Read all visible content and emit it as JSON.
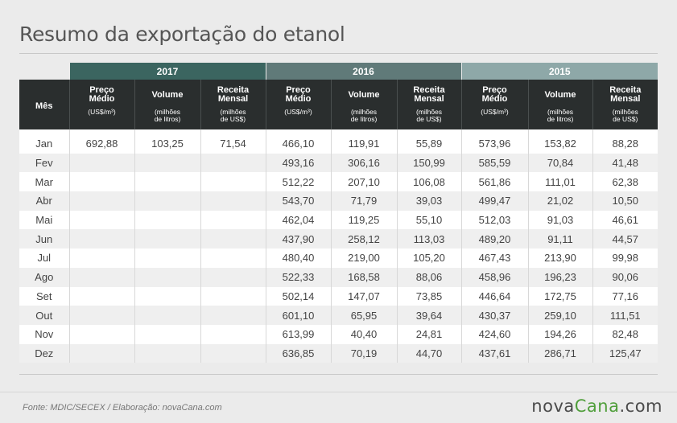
{
  "title": "Resumo da exportação do etanol",
  "years": [
    "2017",
    "2016",
    "2015"
  ],
  "month_header": "Mês",
  "column_headers": {
    "preco_line1": "Preço",
    "preco_line2": "Médio",
    "volume": "Volume",
    "receita_line1": "Receita",
    "receita_line2": "Mensal"
  },
  "unit_headers": {
    "preco": "(US$/m³)",
    "volume_line1": "(milhões",
    "volume_line2": "de litros)",
    "receita_line1": "(milhões",
    "receita_line2": "de US$)"
  },
  "rows": [
    {
      "month": "Jan",
      "y2017": [
        "692,88",
        "103,25",
        "71,54"
      ],
      "y2016": [
        "466,10",
        "119,91",
        "55,89"
      ],
      "y2015": [
        "573,96",
        "153,82",
        "88,28"
      ]
    },
    {
      "month": "Fev",
      "y2017": [
        "",
        "",
        ""
      ],
      "y2016": [
        "493,16",
        "306,16",
        "150,99"
      ],
      "y2015": [
        "585,59",
        "70,84",
        "41,48"
      ]
    },
    {
      "month": "Mar",
      "y2017": [
        "",
        "",
        ""
      ],
      "y2016": [
        "512,22",
        "207,10",
        "106,08"
      ],
      "y2015": [
        "561,86",
        "111,01",
        "62,38"
      ]
    },
    {
      "month": "Abr",
      "y2017": [
        "",
        "",
        ""
      ],
      "y2016": [
        "543,70",
        "71,79",
        "39,03"
      ],
      "y2015": [
        "499,47",
        "21,02",
        "10,50"
      ]
    },
    {
      "month": "Mai",
      "y2017": [
        "",
        "",
        ""
      ],
      "y2016": [
        "462,04",
        "119,25",
        "55,10"
      ],
      "y2015": [
        "512,03",
        "91,03",
        "46,61"
      ]
    },
    {
      "month": "Jun",
      "y2017": [
        "",
        "",
        ""
      ],
      "y2016": [
        "437,90",
        "258,12",
        "113,03"
      ],
      "y2015": [
        "489,20",
        "91,11",
        "44,57"
      ]
    },
    {
      "month": "Jul",
      "y2017": [
        "",
        "",
        ""
      ],
      "y2016": [
        "480,40",
        "219,00",
        "105,20"
      ],
      "y2015": [
        "467,43",
        "213,90",
        "99,98"
      ]
    },
    {
      "month": "Ago",
      "y2017": [
        "",
        "",
        ""
      ],
      "y2016": [
        "522,33",
        "168,58",
        "88,06"
      ],
      "y2015": [
        "458,96",
        "196,23",
        "90,06"
      ]
    },
    {
      "month": "Set",
      "y2017": [
        "",
        "",
        ""
      ],
      "y2016": [
        "502,14",
        "147,07",
        "73,85"
      ],
      "y2015": [
        "446,64",
        "172,75",
        "77,16"
      ]
    },
    {
      "month": "Out",
      "y2017": [
        "",
        "",
        ""
      ],
      "y2016": [
        "601,10",
        "65,95",
        "39,64"
      ],
      "y2015": [
        "430,37",
        "259,10",
        "111,51"
      ]
    },
    {
      "month": "Nov",
      "y2017": [
        "",
        "",
        ""
      ],
      "y2016": [
        "613,99",
        "40,40",
        "24,81"
      ],
      "y2015": [
        "424,60",
        "194,26",
        "82,48"
      ]
    },
    {
      "month": "Dez",
      "y2017": [
        "",
        "",
        ""
      ],
      "y2016": [
        "636,85",
        "70,19",
        "44,70"
      ],
      "y2015": [
        "437,61",
        "286,71",
        "125,47"
      ]
    }
  ],
  "footer": {
    "source": "Fonte: MDIC/SECEX / Elaboração: novaCana.com",
    "logo_nova": "nova",
    "logo_cana": "Cana",
    "logo_com": ".com"
  },
  "colors": {
    "year_2017": "#3b6560",
    "year_2016": "#607a79",
    "year_2015": "#8ea8a8",
    "header_dark": "#2a2e2e",
    "logo_green": "#4f9e3a"
  }
}
